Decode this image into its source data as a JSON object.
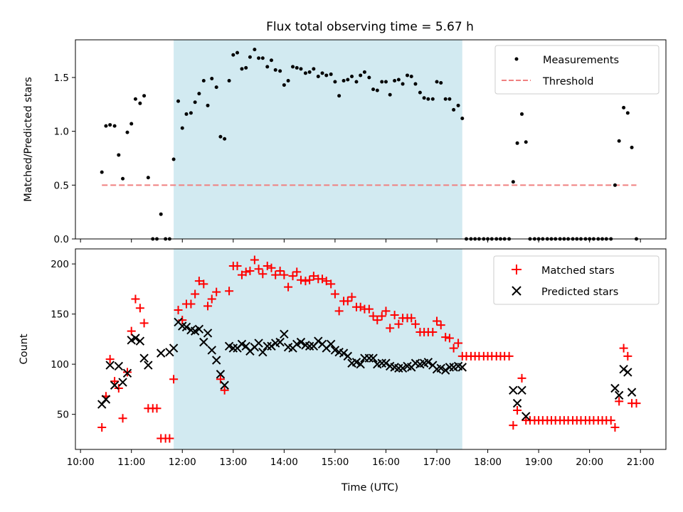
{
  "chart_data": {
    "type": "scatter",
    "title": "Flux total observing time = 5.67 h",
    "xlabel": "Time (UTC)",
    "x_unit": "hours UTC",
    "xlim": [
      9.9,
      21.5
    ],
    "xticks": [
      10,
      11,
      12,
      13,
      14,
      15,
      16,
      17,
      18,
      19,
      20,
      21
    ],
    "xtick_labels": [
      "10:00",
      "11:00",
      "12:00",
      "13:00",
      "14:00",
      "15:00",
      "16:00",
      "17:00",
      "18:00",
      "19:00",
      "20:00",
      "21:00"
    ],
    "observing_window": [
      11.83,
      17.5
    ],
    "observing_window_color": "#add8e6",
    "panels": [
      {
        "ylabel": "Matched/Predicted stars",
        "ylim": [
          0,
          1.85
        ],
        "yticks": [
          0.0,
          0.5,
          1.0,
          1.5
        ],
        "ytick_labels": [
          "0.0",
          "0.5",
          "1.0",
          "1.5"
        ],
        "legend_position": "upper-right",
        "series": [
          {
            "name": "Measurements",
            "marker": "dot",
            "color": "#000000",
            "x": [
              10.42,
              10.5,
              10.58,
              10.67,
              10.75,
              10.83,
              10.92,
              11.0,
              11.08,
              11.17,
              11.25,
              11.33,
              11.42,
              11.5,
              11.58,
              11.67,
              11.75,
              11.83,
              11.92,
              12.0,
              12.08,
              12.17,
              12.25,
              12.33,
              12.42,
              12.5,
              12.58,
              12.67,
              12.75,
              12.83,
              12.92,
              13.0,
              13.08,
              13.17,
              13.25,
              13.33,
              13.42,
              13.5,
              13.58,
              13.67,
              13.75,
              13.83,
              13.92,
              14.0,
              14.08,
              14.17,
              14.25,
              14.33,
              14.42,
              14.5,
              14.58,
              14.67,
              14.75,
              14.83,
              14.92,
              15.0,
              15.08,
              15.17,
              15.25,
              15.33,
              15.42,
              15.5,
              15.58,
              15.67,
              15.75,
              15.83,
              15.92,
              16.0,
              16.08,
              16.17,
              16.25,
              16.33,
              16.42,
              16.5,
              16.58,
              16.67,
              16.75,
              16.83,
              16.92,
              17.0,
              17.08,
              17.17,
              17.25,
              17.33,
              17.42,
              17.5,
              17.58,
              17.67,
              17.75,
              17.83,
              17.92,
              18.0,
              18.08,
              18.17,
              18.25,
              18.33,
              18.42,
              18.5,
              18.58,
              18.67,
              18.75,
              18.83,
              18.92,
              19.0,
              19.08,
              19.17,
              19.25,
              19.33,
              19.42,
              19.5,
              19.58,
              19.67,
              19.75,
              19.83,
              19.92,
              20.0,
              20.08,
              20.17,
              20.25,
              20.33,
              20.42,
              20.5,
              20.58,
              20.67,
              20.75,
              20.83,
              20.92
            ],
            "y": [
              0.62,
              1.05,
              1.06,
              1.05,
              0.78,
              0.56,
              0.99,
              1.07,
              1.3,
              1.26,
              1.33,
              0.57,
              0.0,
              0.0,
              0.23,
              0.0,
              0.0,
              0.74,
              1.28,
              1.03,
              1.16,
              1.17,
              1.27,
              1.35,
              1.47,
              1.24,
              1.49,
              1.41,
              0.95,
              0.93,
              1.47,
              1.71,
              1.73,
              1.58,
              1.59,
              1.69,
              1.76,
              1.68,
              1.68,
              1.6,
              1.66,
              1.57,
              1.56,
              1.43,
              1.47,
              1.6,
              1.59,
              1.58,
              1.54,
              1.55,
              1.58,
              1.51,
              1.54,
              1.52,
              1.53,
              1.46,
              1.33,
              1.47,
              1.48,
              1.51,
              1.46,
              1.52,
              1.55,
              1.5,
              1.39,
              1.38,
              1.46,
              1.46,
              1.34,
              1.47,
              1.48,
              1.44,
              1.52,
              1.51,
              1.44,
              1.36,
              1.31,
              1.3,
              1.3,
              1.46,
              1.45,
              1.3,
              1.3,
              1.2,
              1.24,
              1.12,
              0.0,
              0.0,
              0.0,
              0.0,
              0.0,
              0.0,
              0.0,
              0.0,
              0.0,
              0.0,
              0.0,
              0.53,
              0.89,
              1.16,
              0.9,
              0.0,
              0.0,
              0.0,
              0.0,
              0.0,
              0.0,
              0.0,
              0.0,
              0.0,
              0.0,
              0.0,
              0.0,
              0.0,
              0.0,
              0.0,
              0.0,
              0.0,
              0.0,
              0.0,
              0.0,
              0.5,
              0.91,
              1.22,
              1.17,
              0.85,
              0.0
            ]
          },
          {
            "name": "Threshold",
            "marker": "dashed-line",
            "color": "#f08080",
            "x": [
              10.42,
              20.92
            ],
            "y": [
              0.5,
              0.5
            ]
          }
        ]
      },
      {
        "ylabel": "Count",
        "ylim": [
          15,
          215
        ],
        "yticks": [
          50,
          100,
          150,
          200
        ],
        "ytick_labels": [
          "50",
          "100",
          "150",
          "200"
        ],
        "legend_position": "upper-right",
        "series": [
          {
            "name": "Matched stars",
            "marker": "plus",
            "color": "#ff0000",
            "x": [
              10.42,
              10.5,
              10.58,
              10.67,
              10.75,
              10.83,
              10.92,
              11.0,
              11.08,
              11.17,
              11.25,
              11.33,
              11.42,
              11.5,
              11.58,
              11.67,
              11.75,
              11.83,
              11.92,
              12.0,
              12.08,
              12.17,
              12.25,
              12.33,
              12.42,
              12.5,
              12.58,
              12.67,
              12.75,
              12.83,
              12.92,
              13.0,
              13.08,
              13.17,
              13.25,
              13.33,
              13.42,
              13.5,
              13.58,
              13.67,
              13.75,
              13.83,
              13.92,
              14.0,
              14.08,
              14.17,
              14.25,
              14.33,
              14.42,
              14.5,
              14.58,
              14.67,
              14.75,
              14.83,
              14.92,
              15.0,
              15.08,
              15.17,
              15.25,
              15.33,
              15.42,
              15.5,
              15.58,
              15.67,
              15.75,
              15.83,
              15.92,
              16.0,
              16.08,
              16.17,
              16.25,
              16.33,
              16.42,
              16.5,
              16.58,
              16.67,
              16.75,
              16.83,
              16.92,
              17.0,
              17.08,
              17.17,
              17.25,
              17.33,
              17.42,
              17.5,
              17.58,
              17.67,
              17.75,
              17.83,
              17.92,
              18.0,
              18.08,
              18.17,
              18.25,
              18.33,
              18.42,
              18.5,
              18.58,
              18.67,
              18.75,
              18.83,
              18.92,
              19.0,
              19.08,
              19.17,
              19.25,
              19.33,
              19.42,
              19.5,
              19.58,
              19.67,
              19.75,
              19.83,
              19.92,
              20.0,
              20.08,
              20.17,
              20.25,
              20.33,
              20.42,
              20.5,
              20.58,
              20.67,
              20.75,
              20.83,
              20.92
            ],
            "y": [
              37,
              68,
              105,
              83,
              76,
              46,
              92,
              133,
              165,
              156,
              141,
              56,
              56,
              56,
              26,
              26,
              26,
              85,
              154,
              144,
              160,
              160,
              170,
              183,
              180,
              158,
              165,
              172,
              85,
              74,
              173,
              198,
              198,
              189,
              192,
              193,
              204,
              195,
              190,
              198,
              196,
              189,
              193,
              189,
              177,
              188,
              192,
              184,
              183,
              184,
              188,
              185,
              185,
              183,
              180,
              170,
              153,
              163,
              163,
              167,
              157,
              157,
              155,
              155,
              148,
              144,
              148,
              153,
              136,
              149,
              140,
              146,
              146,
              146,
              140,
              132,
              132,
              132,
              132,
              143,
              139,
              127,
              126,
              116,
              121,
              108,
              108,
              108,
              108,
              108,
              108,
              108,
              108,
              108,
              108,
              108,
              108,
              39,
              54,
              86,
              44,
              44,
              44,
              44,
              44,
              44,
              44,
              44,
              44,
              44,
              44,
              44,
              44,
              44,
              44,
              44,
              44,
              44,
              44,
              44,
              44,
              37,
              63,
              116,
              108,
              61,
              61
            ]
          },
          {
            "name": "Predicted stars",
            "marker": "x",
            "color": "#000000",
            "x": [
              10.42,
              10.5,
              10.58,
              10.67,
              10.75,
              10.83,
              10.92,
              11.0,
              11.08,
              11.17,
              11.25,
              11.33,
              11.58,
              11.75,
              11.83,
              11.92,
              12.0,
              12.08,
              12.17,
              12.25,
              12.33,
              12.42,
              12.5,
              12.58,
              12.67,
              12.75,
              12.83,
              12.92,
              13.0,
              13.08,
              13.17,
              13.25,
              13.33,
              13.42,
              13.5,
              13.58,
              13.67,
              13.75,
              13.83,
              13.92,
              14.0,
              14.08,
              14.17,
              14.25,
              14.33,
              14.42,
              14.5,
              14.58,
              14.67,
              14.75,
              14.83,
              14.92,
              15.0,
              15.08,
              15.17,
              15.25,
              15.33,
              15.42,
              15.5,
              15.58,
              15.67,
              15.75,
              15.83,
              15.92,
              16.0,
              16.08,
              16.17,
              16.25,
              16.33,
              16.42,
              16.5,
              16.58,
              16.67,
              16.75,
              16.83,
              16.92,
              17.0,
              17.08,
              17.17,
              17.25,
              17.33,
              17.42,
              17.5,
              18.5,
              18.58,
              18.67,
              18.75,
              20.5,
              20.58,
              20.67,
              20.75,
              20.83
            ],
            "y": [
              60,
              65,
              99,
              79,
              98,
              82,
              91,
              124,
              126,
              123,
              106,
              99,
              111,
              112,
              116,
              142,
              138,
              137,
              134,
              133,
              135,
              122,
              131,
              114,
              104,
              90,
              79,
              118,
              116,
              116,
              120,
              118,
              113,
              117,
              121,
              112,
              118,
              118,
              121,
              122,
              130,
              117,
              116,
              120,
              122,
              119,
              118,
              118,
              123,
              120,
              116,
              120,
              114,
              112,
              111,
              108,
              101,
              102,
              100,
              106,
              106,
              106,
              100,
              101,
              101,
              98,
              97,
              96,
              96,
              98,
              97,
              101,
              100,
              101,
              102,
              99,
              95,
              96,
              94,
              97,
              97,
              98,
              97,
              74,
              61,
              74,
              48,
              76,
              69,
              95,
              92,
              72
            ]
          }
        ]
      }
    ]
  }
}
